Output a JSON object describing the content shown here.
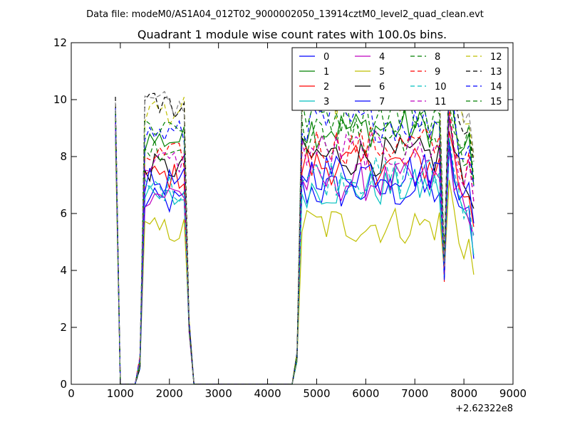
{
  "figure": {
    "suptitle": "Data file: modeM0/AS1A04_012T02_9000002050_13914cztM0_level2_quad_clean.evt"
  },
  "chart_data": {
    "type": "line",
    "title": "Quadrant 1 module wise count rates with 100.0s bins.",
    "xlabel": "",
    "ylabel": "",
    "x_offset_label": "+2.62322e8",
    "xlim": [
      0,
      9000
    ],
    "ylim": [
      0,
      12
    ],
    "x_ticks": [
      0,
      1000,
      2000,
      3000,
      4000,
      5000,
      6000,
      7000,
      8000,
      9000
    ],
    "y_ticks": [
      0,
      2,
      4,
      6,
      8,
      10,
      12
    ],
    "legend_placement": "top-right",
    "legend_columns": 4,
    "grid": false,
    "series": [
      {
        "name": "0",
        "color": "#0000ff",
        "dash": "solid",
        "base": 6.4,
        "gti_start": 9.6
      },
      {
        "name": "1",
        "color": "#008000",
        "dash": "solid",
        "base": 8.6,
        "gti_start": 9.4
      },
      {
        "name": "2",
        "color": "#ff0000",
        "dash": "solid",
        "base": 7.3,
        "gti_start": 9.0
      },
      {
        "name": "3",
        "color": "#00bfbf",
        "dash": "solid",
        "base": 6.5,
        "gti_start": 8.8
      },
      {
        "name": "4",
        "color": "#bf00bf",
        "dash": "solid",
        "base": 6.7,
        "gti_start": 9.2
      },
      {
        "name": "5",
        "color": "#bfbf00",
        "dash": "solid",
        "base": 5.4,
        "gti_start": 8.5
      },
      {
        "name": "6",
        "color": "#000000",
        "dash": "solid",
        "base": 7.6,
        "gti_start": 9.3
      },
      {
        "name": "7",
        "color": "#0000ff",
        "dash": "solid",
        "base": 7.1,
        "gti_start": 9.1
      },
      {
        "name": "8",
        "color": "#008000",
        "dash": "dashed",
        "base": 8.3,
        "gti_start": 9.5
      },
      {
        "name": "9",
        "color": "#ff0000",
        "dash": "dashed",
        "base": 8.0,
        "gti_start": 9.4
      },
      {
        "name": "10",
        "color": "#00bfbf",
        "dash": "dashed",
        "base": 6.9,
        "gti_start": 9.0
      },
      {
        "name": "11",
        "color": "#bf00bf",
        "dash": "dashed",
        "base": 7.8,
        "gti_start": 9.2
      },
      {
        "name": "12",
        "color": "#bfbf00",
        "dash": "dashed",
        "base": 9.6,
        "gti_start": 9.8
      },
      {
        "name": "13",
        "color": "#000000",
        "dash": "dashed",
        "base": 9.8,
        "gti_start": 10.1
      },
      {
        "name": "14",
        "color": "#0000ff",
        "dash": "dashed",
        "base": 8.8,
        "gti_start": 9.7
      },
      {
        "name": "15",
        "color": "#008000",
        "dash": "dashed",
        "base": 9.1,
        "gti_start": 9.6
      },
      {
        "name": "",
        "color": "#808080",
        "dash": "dashed",
        "base": 9.9,
        "gti_start": 9.9,
        "unlabeled": true
      }
    ],
    "x": [
      900,
      1000,
      1100,
      1200,
      1300,
      1400,
      1500,
      1600,
      1700,
      1800,
      1900,
      2000,
      2100,
      2200,
      2300,
      2400,
      2500,
      2600,
      2700,
      2800,
      2900,
      3000,
      3100,
      3200,
      3300,
      3400,
      3500,
      3600,
      3700,
      3800,
      3900,
      4000,
      4100,
      4200,
      4300,
      4400,
      4500,
      4600,
      4700,
      4800,
      4900,
      5000,
      5100,
      5200,
      5300,
      5400,
      5500,
      5600,
      5700,
      5800,
      5900,
      6000,
      6100,
      6200,
      6300,
      6400,
      6500,
      6600,
      6700,
      6800,
      6900,
      7000,
      7100,
      7200,
      7300,
      7400,
      7500,
      7600,
      7700,
      7800,
      7900,
      8000,
      8100,
      8200
    ]
  }
}
